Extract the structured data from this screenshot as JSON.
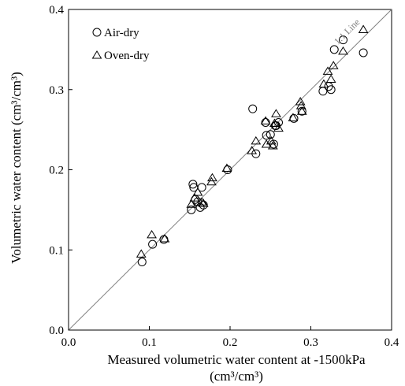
{
  "chart_data": {
    "type": "scatter",
    "xlabel_line1": "Measured volumetric water content at -1500kPa",
    "xlabel_unit": "(cm³/cm³)",
    "ylabel": "Volumetric water content (cm³/cm³)",
    "xlim": [
      0.0,
      0.4
    ],
    "ylim": [
      0.0,
      0.4
    ],
    "x_ticks": [
      "0.0",
      "0.1",
      "0.2",
      "0.3",
      "0.4"
    ],
    "y_ticks": [
      "0.0",
      "0.1",
      "0.2",
      "0.3",
      "0.4"
    ],
    "grid": false,
    "legend_position": "top-left",
    "reference_line": {
      "label": "1:1 Line",
      "from": [
        0.0,
        0.0
      ],
      "to": [
        0.4,
        0.4
      ],
      "color": "#808080"
    },
    "series": [
      {
        "name": "Air-dry",
        "marker": "circle",
        "color": "#000000",
        "points": [
          [
            0.091,
            0.085
          ],
          [
            0.104,
            0.107
          ],
          [
            0.118,
            0.113
          ],
          [
            0.152,
            0.15
          ],
          [
            0.154,
            0.182
          ],
          [
            0.155,
            0.178
          ],
          [
            0.157,
            0.163
          ],
          [
            0.16,
            0.16
          ],
          [
            0.163,
            0.153
          ],
          [
            0.165,
            0.178
          ],
          [
            0.167,
            0.156
          ],
          [
            0.197,
            0.2
          ],
          [
            0.228,
            0.276
          ],
          [
            0.232,
            0.22
          ],
          [
            0.244,
            0.259
          ],
          [
            0.245,
            0.243
          ],
          [
            0.25,
            0.244
          ],
          [
            0.254,
            0.232
          ],
          [
            0.256,
            0.255
          ],
          [
            0.257,
            0.255
          ],
          [
            0.26,
            0.259
          ],
          [
            0.279,
            0.264
          ],
          [
            0.289,
            0.273
          ],
          [
            0.315,
            0.298
          ],
          [
            0.322,
            0.304
          ],
          [
            0.325,
            0.3
          ],
          [
            0.329,
            0.35
          ],
          [
            0.34,
            0.362
          ],
          [
            0.365,
            0.346
          ]
        ]
      },
      {
        "name": "Oven-dry",
        "marker": "triangle",
        "color": "#000000",
        "points": [
          [
            0.09,
            0.095
          ],
          [
            0.103,
            0.119
          ],
          [
            0.119,
            0.114
          ],
          [
            0.152,
            0.157
          ],
          [
            0.156,
            0.165
          ],
          [
            0.16,
            0.172
          ],
          [
            0.165,
            0.16
          ],
          [
            0.167,
            0.158
          ],
          [
            0.177,
            0.185
          ],
          [
            0.178,
            0.19
          ],
          [
            0.196,
            0.202
          ],
          [
            0.227,
            0.224
          ],
          [
            0.232,
            0.236
          ],
          [
            0.244,
            0.261
          ],
          [
            0.245,
            0.232
          ],
          [
            0.251,
            0.236
          ],
          [
            0.253,
            0.23
          ],
          [
            0.255,
            0.258
          ],
          [
            0.257,
            0.27
          ],
          [
            0.26,
            0.252
          ],
          [
            0.278,
            0.265
          ],
          [
            0.287,
            0.285
          ],
          [
            0.288,
            0.28
          ],
          [
            0.289,
            0.273
          ],
          [
            0.316,
            0.307
          ],
          [
            0.321,
            0.323
          ],
          [
            0.325,
            0.313
          ],
          [
            0.328,
            0.33
          ],
          [
            0.34,
            0.348
          ],
          [
            0.365,
            0.375
          ]
        ]
      }
    ]
  }
}
